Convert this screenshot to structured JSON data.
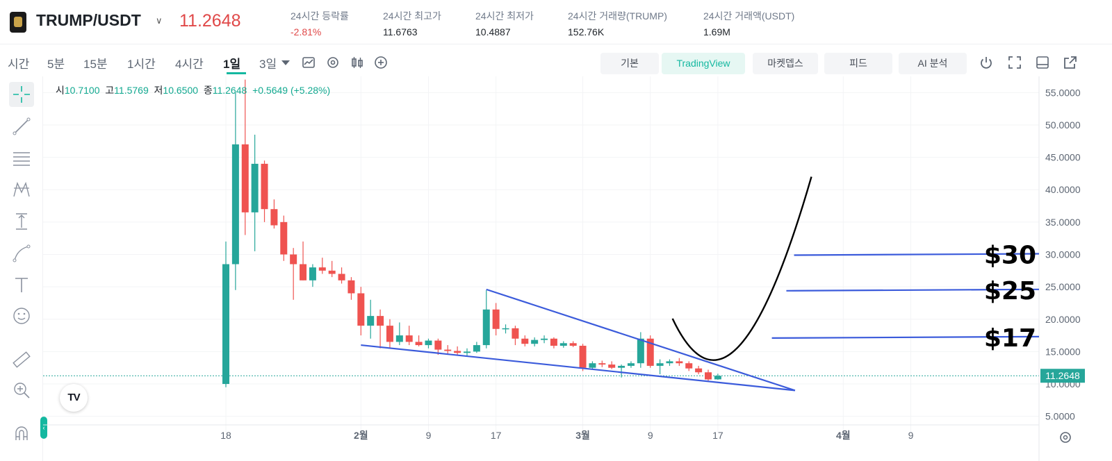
{
  "header": {
    "pair": "TRUMP/USDT",
    "last_price": "11.2648",
    "stats": [
      {
        "label": "24시간 등락률",
        "value": "-2.81%",
        "negative": true
      },
      {
        "label": "24시간 최고가",
        "value": "11.6763"
      },
      {
        "label": "24시간 최저가",
        "value": "10.4887"
      },
      {
        "label": "24시간 거래량(TRUMP)",
        "value": "152.76K"
      },
      {
        "label": "24시간 거래액(USDT)",
        "value": "1.69M"
      }
    ]
  },
  "toolbar": {
    "intervals": [
      "시간",
      "5분",
      "15분",
      "1시간",
      "4시간",
      "1일",
      "3일"
    ],
    "active_interval": "1일",
    "buttons": [
      "기본",
      "TradingView",
      "마켓뎁스",
      "피드",
      "AI 분석"
    ],
    "active_button": "TradingView"
  },
  "ohlc": {
    "o_label": "시",
    "o": "10.7100",
    "h_label": "고",
    "h": "11.5769",
    "l_label": "저",
    "l": "10.6500",
    "c_label": "종",
    "c": "11.2648",
    "change": "+0.5649",
    "change_pct": "(+5.28%)"
  },
  "tv_logo": "TV",
  "colors": {
    "up": "#26a69a",
    "down": "#ef5350",
    "accent": "#14b8a0",
    "trendline": "#3b5bdb",
    "price_line": "#26a69a"
  },
  "chart_data": {
    "type": "candlestick",
    "x_tick_labels": [
      {
        "label": "18",
        "day": 0
      },
      {
        "label": "2월",
        "day": 14
      },
      {
        "label": "9",
        "day": 21
      },
      {
        "label": "17",
        "day": 28
      },
      {
        "label": "3월",
        "day": 37
      },
      {
        "label": "9",
        "day": 44
      },
      {
        "label": "17",
        "day": 51
      },
      {
        "label": "4월",
        "day": 64
      },
      {
        "label": "9",
        "day": 71
      }
    ],
    "y_ticks": [
      5,
      10,
      15,
      20,
      25,
      30,
      35,
      40,
      45,
      50,
      55
    ],
    "y_tick_format": "0.0000",
    "ylim": [
      2.5,
      57.5
    ],
    "current_price": 11.2648,
    "current_price_label": "11.2648",
    "candles": [
      {
        "day": 0,
        "o": 10.0,
        "h": 32.0,
        "l": 9.5,
        "c": 28.5
      },
      {
        "day": 1,
        "o": 28.5,
        "h": 55.0,
        "l": 24.5,
        "c": 47.0
      },
      {
        "day": 2,
        "o": 47.0,
        "h": 57.0,
        "l": 33.0,
        "c": 36.5
      },
      {
        "day": 3,
        "o": 36.5,
        "h": 48.5,
        "l": 30.5,
        "c": 44.0
      },
      {
        "day": 4,
        "o": 44.0,
        "h": 44.5,
        "l": 35.0,
        "c": 37.0
      },
      {
        "day": 5,
        "o": 37.0,
        "h": 38.5,
        "l": 34.0,
        "c": 34.5
      },
      {
        "day": 6,
        "o": 35.0,
        "h": 36.0,
        "l": 29.0,
        "c": 30.0
      },
      {
        "day": 7,
        "o": 30.0,
        "h": 31.0,
        "l": 23.0,
        "c": 28.5
      },
      {
        "day": 8,
        "o": 28.5,
        "h": 32.0,
        "l": 26.0,
        "c": 26.0
      },
      {
        "day": 9,
        "o": 26.0,
        "h": 28.5,
        "l": 25.0,
        "c": 28.0
      },
      {
        "day": 10,
        "o": 28.0,
        "h": 29.5,
        "l": 27.0,
        "c": 27.5
      },
      {
        "day": 11,
        "o": 27.5,
        "h": 29.0,
        "l": 26.5,
        "c": 27.0
      },
      {
        "day": 12,
        "o": 27.0,
        "h": 28.0,
        "l": 25.5,
        "c": 26.0
      },
      {
        "day": 13,
        "o": 26.0,
        "h": 26.5,
        "l": 23.0,
        "c": 24.0
      },
      {
        "day": 14,
        "o": 24.0,
        "h": 25.0,
        "l": 17.5,
        "c": 19.0
      },
      {
        "day": 15,
        "o": 19.0,
        "h": 23.0,
        "l": 17.0,
        "c": 20.5
      },
      {
        "day": 16,
        "o": 20.5,
        "h": 21.5,
        "l": 15.5,
        "c": 19.0
      },
      {
        "day": 17,
        "o": 19.0,
        "h": 20.0,
        "l": 15.5,
        "c": 16.5
      },
      {
        "day": 18,
        "o": 16.5,
        "h": 19.5,
        "l": 16.0,
        "c": 17.5
      },
      {
        "day": 19,
        "o": 17.5,
        "h": 19.0,
        "l": 16.0,
        "c": 16.5
      },
      {
        "day": 20,
        "o": 16.5,
        "h": 17.5,
        "l": 15.8,
        "c": 16.0
      },
      {
        "day": 21,
        "o": 16.0,
        "h": 17.0,
        "l": 15.5,
        "c": 16.7
      },
      {
        "day": 22,
        "o": 16.7,
        "h": 17.0,
        "l": 14.5,
        "c": 15.3
      },
      {
        "day": 23,
        "o": 15.3,
        "h": 16.0,
        "l": 14.5,
        "c": 15.1
      },
      {
        "day": 24,
        "o": 15.1,
        "h": 15.8,
        "l": 14.5,
        "c": 14.8
      },
      {
        "day": 25,
        "o": 14.8,
        "h": 15.5,
        "l": 14.2,
        "c": 15.0
      },
      {
        "day": 26,
        "o": 15.0,
        "h": 16.5,
        "l": 14.8,
        "c": 16.0
      },
      {
        "day": 27,
        "o": 16.0,
        "h": 24.5,
        "l": 15.5,
        "c": 21.5
      },
      {
        "day": 28,
        "o": 21.5,
        "h": 22.5,
        "l": 17.5,
        "c": 18.5
      },
      {
        "day": 29,
        "o": 18.5,
        "h": 19.2,
        "l": 17.8,
        "c": 18.6
      },
      {
        "day": 30,
        "o": 18.6,
        "h": 19.0,
        "l": 16.0,
        "c": 17.0
      },
      {
        "day": 31,
        "o": 17.0,
        "h": 17.5,
        "l": 15.8,
        "c": 16.2
      },
      {
        "day": 32,
        "o": 16.2,
        "h": 17.2,
        "l": 15.8,
        "c": 16.8
      },
      {
        "day": 33,
        "o": 16.8,
        "h": 17.5,
        "l": 16.3,
        "c": 17.0
      },
      {
        "day": 34,
        "o": 17.0,
        "h": 17.2,
        "l": 15.5,
        "c": 15.9
      },
      {
        "day": 35,
        "o": 15.9,
        "h": 16.6,
        "l": 15.6,
        "c": 16.3
      },
      {
        "day": 36,
        "o": 16.3,
        "h": 16.6,
        "l": 15.7,
        "c": 15.9
      },
      {
        "day": 37,
        "o": 15.9,
        "h": 16.2,
        "l": 12.0,
        "c": 12.5
      },
      {
        "day": 38,
        "o": 12.5,
        "h": 13.5,
        "l": 12.2,
        "c": 13.2
      },
      {
        "day": 39,
        "o": 13.2,
        "h": 13.6,
        "l": 12.6,
        "c": 13.0
      },
      {
        "day": 40,
        "o": 13.0,
        "h": 13.5,
        "l": 12.3,
        "c": 12.5
      },
      {
        "day": 41,
        "o": 12.5,
        "h": 13.0,
        "l": 11.0,
        "c": 12.8
      },
      {
        "day": 42,
        "o": 12.8,
        "h": 13.5,
        "l": 12.5,
        "c": 13.2
      },
      {
        "day": 43,
        "o": 13.2,
        "h": 18.0,
        "l": 12.5,
        "c": 17.0
      },
      {
        "day": 44,
        "o": 17.0,
        "h": 17.5,
        "l": 12.5,
        "c": 12.8
      },
      {
        "day": 45,
        "o": 12.8,
        "h": 13.8,
        "l": 11.5,
        "c": 13.2
      },
      {
        "day": 46,
        "o": 13.2,
        "h": 13.8,
        "l": 12.8,
        "c": 13.5
      },
      {
        "day": 47,
        "o": 13.5,
        "h": 14.0,
        "l": 12.8,
        "c": 13.2
      },
      {
        "day": 48,
        "o": 13.2,
        "h": 13.5,
        "l": 12.0,
        "c": 12.4
      },
      {
        "day": 49,
        "o": 12.4,
        "h": 12.8,
        "l": 11.5,
        "c": 11.8
      },
      {
        "day": 50,
        "o": 11.8,
        "h": 12.2,
        "l": 10.4,
        "c": 10.7
      },
      {
        "day": 51,
        "o": 10.71,
        "h": 11.58,
        "l": 10.65,
        "c": 11.26
      }
    ],
    "trendlines": [
      {
        "from": {
          "day": 27,
          "value": 24.6
        },
        "to": {
          "day": 59,
          "value": 9.0
        }
      },
      {
        "from": {
          "day": 14,
          "value": 16.0
        },
        "to": {
          "day": 59,
          "value": 9.0
        }
      }
    ],
    "target_levels": [
      {
        "label": "$30",
        "value": 30.0,
        "from_day": 58.9
      },
      {
        "label": "$25",
        "value": 24.5,
        "from_day": 58.1
      },
      {
        "label": "$17",
        "value": 17.2,
        "from_day": 56.6
      }
    ],
    "projection_curve": {
      "start": {
        "day": 46.3,
        "value": 20.1
      },
      "control": {
        "day": 52.6,
        "value": 0.2
      },
      "end": {
        "day": 60.7,
        "value": 42.0
      }
    }
  }
}
